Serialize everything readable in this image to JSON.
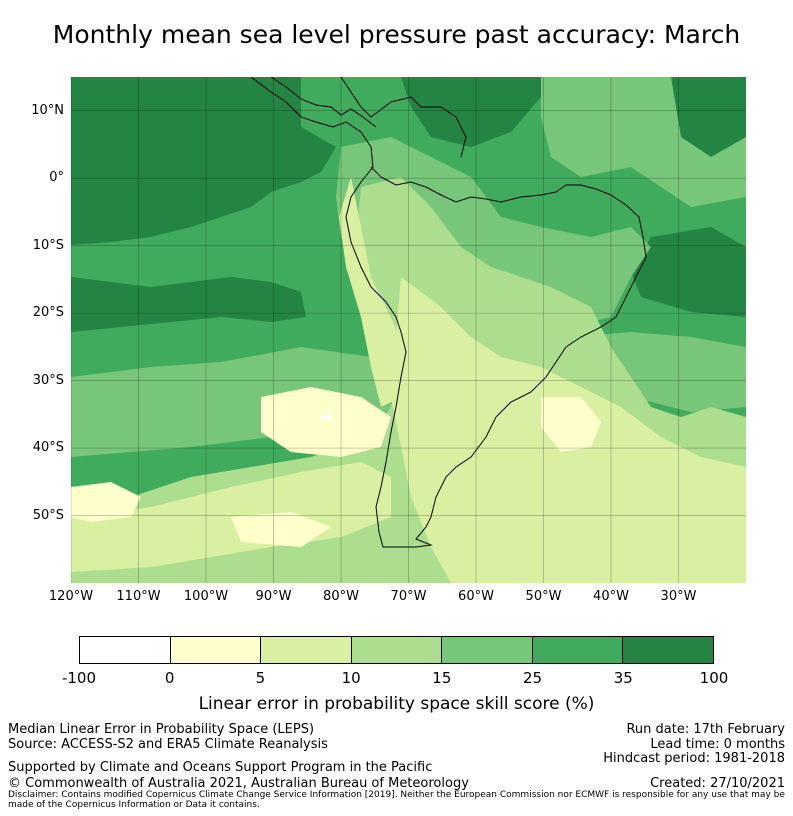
{
  "title": "Monthly mean sea level pressure past accuracy: March",
  "map": {
    "region": "South America",
    "lat_labels": [
      "10°N",
      "0°",
      "10°S",
      "20°S",
      "30°S",
      "40°S",
      "50°S"
    ],
    "lat_values": [
      10,
      0,
      -10,
      -20,
      -30,
      -40,
      -50
    ],
    "lon_labels": [
      "120°W",
      "110°W",
      "100°W",
      "90°W",
      "80°W",
      "70°W",
      "60°W",
      "50°W",
      "40°W",
      "30°W"
    ],
    "lon_values": [
      -120,
      -110,
      -100,
      -90,
      -80,
      -70,
      -60,
      -50,
      -40,
      -30
    ],
    "extent": {
      "lon_min": -120,
      "lon_max": -20,
      "lat_min": -60,
      "lat_max": 15
    }
  },
  "colorbar": {
    "ticks": [
      "-100",
      "0",
      "5",
      "10",
      "15",
      "25",
      "35",
      "100"
    ],
    "colors": [
      "#ffffff",
      "#ffffcc",
      "#d9f0a3",
      "#addd8e",
      "#78c679",
      "#41ab5d",
      "#238443"
    ],
    "label": "Linear error in probability space skill score (%)"
  },
  "footer": {
    "left1": "Median Linear Error in Probability Space (LEPS)",
    "left2": "Source: ACCESS-S2 and ERA5 Climate Reanalysis",
    "support": "Supported by Climate and Oceans Support Program in the Pacific",
    "copyright": "© Commonwealth of Australia 2021, Australian Bureau of Meteorology",
    "run_date": "Run date: 17th February",
    "lead_time": "Lead time: 0 months",
    "hindcast": "Hindcast period: 1981-2018",
    "created": "Created: 27/10/2021",
    "disclaimer": "Disclaimer: Contains modified Copernicus Climate Change Service Information [2019]. Neither the European Commission nor ECMWF is responsible for any use that may be made of the Copernicus Information or Data it contains."
  }
}
